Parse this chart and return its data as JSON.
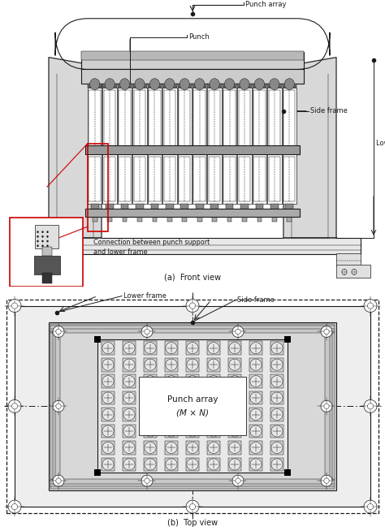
{
  "bg_color": "#ffffff",
  "line_color": "#1a1a1a",
  "red_color": "#cc0000",
  "fig_width": 4.74,
  "fig_height": 6.54,
  "title_a": "(a)  Front view",
  "title_b": "(b)  Top view",
  "label_punch_array": "Punch array",
  "label_punch": "Punch",
  "label_side_frame": "Side frame",
  "label_lower_frame": "Lower frame",
  "label_lower_frame_top": "Lower frame",
  "label_side_frame_top": "Side frame",
  "label_punch_array_top": "Punch array",
  "label_punch_array_mn": "(M × N)",
  "label_connection": "Connection between punch support\nand lower frame"
}
